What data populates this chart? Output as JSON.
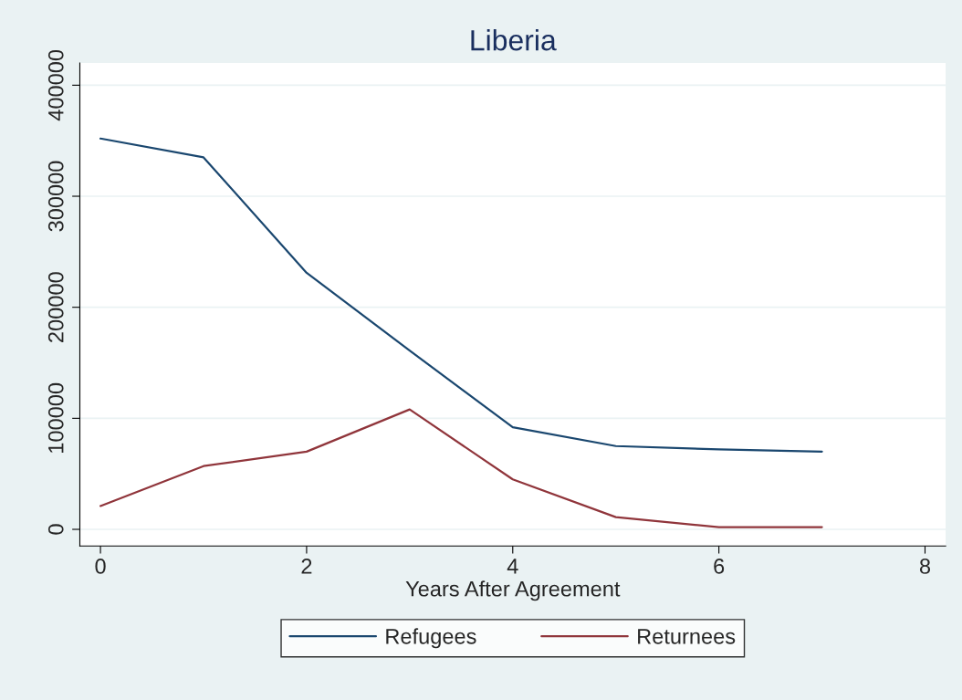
{
  "chart_data": {
    "type": "line",
    "title": "Liberia",
    "xlabel": "Years After Agreement",
    "x": [
      0,
      1,
      2,
      3,
      4,
      5,
      6,
      7
    ],
    "series": [
      {
        "name": "Refugees",
        "color": "#1a476f",
        "values": [
          352000,
          335000,
          231000,
          161000,
          92000,
          75000,
          72000,
          70000
        ]
      },
      {
        "name": "Returnees",
        "color": "#90353b",
        "values": [
          21000,
          57000,
          70000,
          108000,
          45000,
          11000,
          2000,
          2000
        ]
      }
    ],
    "xlim": [
      -0.2,
      8.2
    ],
    "xticks": [
      0,
      2,
      4,
      6,
      8
    ],
    "ylim": [
      -15000,
      420000
    ],
    "yticks": [
      0,
      100000,
      200000,
      300000,
      400000
    ],
    "grid": "y",
    "legend": "bottom",
    "marker": "none",
    "line_style": "solid"
  }
}
